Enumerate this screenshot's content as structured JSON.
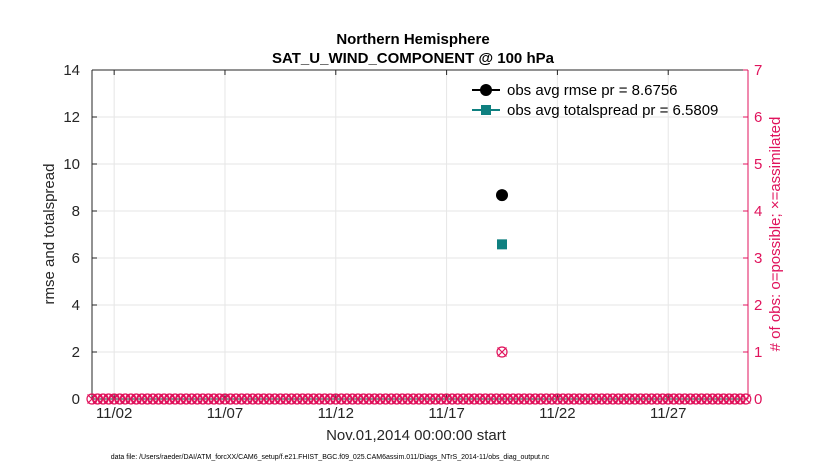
{
  "chart_data": {
    "type": "scatter",
    "title_line1": "Northern Hemisphere",
    "title_line2": "SAT_U_WIND_COMPONENT @ 100 hPa",
    "xlabel": "Nov.01,2014 00:00:00 start",
    "ylabel_left": "rmse and totalspread",
    "ylabel_right": "# of obs: o=possible; ×=assimilated",
    "xlim": [
      1.0,
      30.6
    ],
    "ylim_left": [
      0,
      14
    ],
    "ylim_right": [
      0,
      7
    ],
    "x_ticks": [
      {
        "value": 2,
        "label": "11/02"
      },
      {
        "value": 7,
        "label": "11/07"
      },
      {
        "value": 12,
        "label": "11/12"
      },
      {
        "value": 17,
        "label": "11/17"
      },
      {
        "value": 22,
        "label": "11/22"
      },
      {
        "value": 27,
        "label": "11/27"
      }
    ],
    "y_ticks_left": [
      0,
      2,
      4,
      6,
      8,
      10,
      12,
      14
    ],
    "y_ticks_right": [
      0,
      1,
      2,
      3,
      4,
      5,
      6,
      7
    ],
    "legend_position": "top-right",
    "series": [
      {
        "name": "obs avg rmse pr = 8.6756",
        "axis": "left",
        "color": "#000000",
        "marker": "circle",
        "points": [
          {
            "x": 19.5,
            "y": 8.6756
          }
        ]
      },
      {
        "name": "obs avg totalspread pr = 6.5809",
        "axis": "left",
        "color": "#0f8080",
        "marker": "square",
        "points": [
          {
            "x": 19.5,
            "y": 6.5809
          }
        ]
      },
      {
        "name": "obs possible",
        "axis": "right",
        "color": "#e0135c",
        "marker": "circle-open",
        "zero_days_start": 1.0,
        "zero_days_end": 30.5,
        "zero_days_step": 0.25,
        "nonzero": [
          {
            "x": 19.5,
            "y": 1
          }
        ]
      },
      {
        "name": "obs assimilated",
        "axis": "right",
        "color": "#e0135c",
        "marker": "x",
        "zero_days_start": 1.0,
        "zero_days_end": 30.5,
        "zero_days_step": 0.25,
        "nonzero": [
          {
            "x": 19.5,
            "y": 1
          }
        ]
      }
    ],
    "footnote": "data file: /Users/raeder/DAI/ATM_forcXX/CAM6_setup/f.e21.FHIST_BGC.f09_025.CAM6assim.011/Diags_NTrS_2014-11/obs_diag_output.nc"
  },
  "colors": {
    "left_axis": "#262626",
    "right_axis": "#e0135c",
    "grid": "#e6e6e6"
  }
}
